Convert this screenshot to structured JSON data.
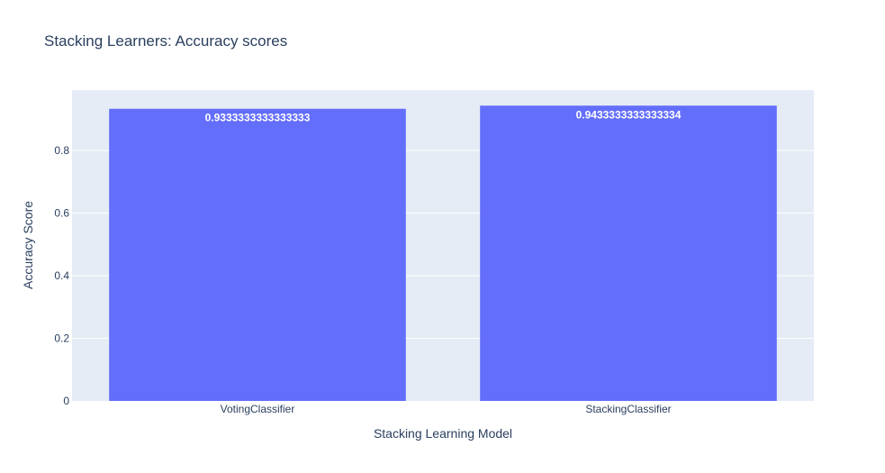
{
  "chart_data": {
    "type": "bar",
    "title": "Stacking Learners: Accuracy scores",
    "xlabel": "Stacking Learning Model",
    "ylabel": "Accuracy Score",
    "categories": [
      "VotingClassifier",
      "StackingClassifier"
    ],
    "values": [
      0.9333333333333333,
      0.9433333333333334
    ],
    "data_labels": [
      "0.9333333333333333",
      "0.9433333333333334"
    ],
    "ylim": [
      0,
      0.993
    ],
    "yticks": [
      0,
      0.2,
      0.4,
      0.6,
      0.8
    ],
    "ytick_labels": [
      "0",
      "0.2",
      "0.4",
      "0.6",
      "0.8"
    ],
    "grid": true,
    "colors": {
      "bar": "#636efa",
      "plot_bg": "#e5ecf6",
      "grid": "#ffffff",
      "text": "#2a3f5f",
      "bar_label": "#ffffff"
    }
  }
}
